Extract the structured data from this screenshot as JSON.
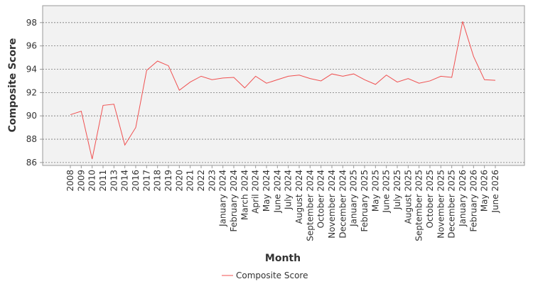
{
  "chart_data": {
    "type": "line",
    "x_label": "Month",
    "y_label": "Composite Score",
    "categories": [
      "2008",
      "2009",
      "2010",
      "2011",
      "2013",
      "2014",
      "2016",
      "2017",
      "2018",
      "2019",
      "2020",
      "2021",
      "2022",
      "2023",
      "January 2024",
      "February 2024",
      "March 2024",
      "April 2024",
      "May 2024",
      "June 2024",
      "July 2024",
      "August 2024",
      "September 2024",
      "October 2024",
      "November 2024",
      "December 2024",
      "January 2025",
      "February 2025",
      "May 2025",
      "June 2025",
      "July 2025",
      "August 2025",
      "September 2025",
      "October 2025",
      "November 2025",
      "December 2025",
      "January 2026",
      "February 2026",
      "May 2026",
      "June 2026"
    ],
    "series": [
      {
        "name": "Composite Score",
        "color": "#f05050",
        "values": [
          90.1,
          90.4,
          86.3,
          90.9,
          91.0,
          87.5,
          89.0,
          93.9,
          94.7,
          94.3,
          92.2,
          92.9,
          93.4,
          93.1,
          93.25,
          93.3,
          92.4,
          93.4,
          92.8,
          93.1,
          93.4,
          93.5,
          93.2,
          93.0,
          93.6,
          93.4,
          93.6,
          93.1,
          92.7,
          93.5,
          92.9,
          93.2,
          92.8,
          93.0,
          93.4,
          93.3,
          98.1,
          95.1,
          93.1,
          93.05
        ]
      }
    ],
    "ylim": [
      85.75,
      99.45
    ],
    "yticks": [
      86,
      88,
      90,
      92,
      94,
      96,
      98
    ],
    "grid": true
  }
}
